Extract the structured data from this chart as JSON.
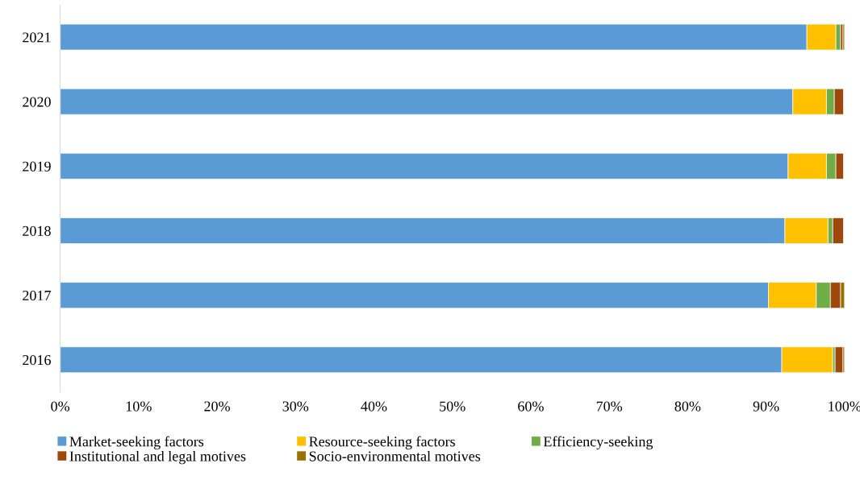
{
  "chart_data": {
    "type": "bar",
    "orientation": "horizontal",
    "stacked": true,
    "categories": [
      "2021",
      "2020",
      "2019",
      "2018",
      "2017",
      "2016"
    ],
    "series": [
      {
        "name": "Market-seeking factors",
        "color": "#5b9bd5",
        "values": [
          95.2,
          93.4,
          92.8,
          92.4,
          90.3,
          92.0
        ]
      },
      {
        "name": "Resource-seeking factors",
        "color": "#ffc000",
        "values": [
          3.7,
          4.3,
          4.9,
          5.5,
          6.1,
          6.5
        ]
      },
      {
        "name": "Efficiency-seeking",
        "color": "#70ad47",
        "values": [
          0.6,
          1.0,
          1.2,
          0.6,
          1.8,
          0.3
        ]
      },
      {
        "name": "Institutional and legal motives",
        "color": "#9e480e",
        "values": [
          0.3,
          1.2,
          1.0,
          1.4,
          1.3,
          1.0
        ]
      },
      {
        "name": "Socio-environmental motives",
        "color": "#997300",
        "values": [
          0.2,
          null,
          null,
          null,
          0.5,
          0.2
        ]
      }
    ],
    "xlim": [
      0,
      100
    ],
    "xticks": [
      {
        "value": 0,
        "label": "0%"
      },
      {
        "value": 10,
        "label": "10%"
      },
      {
        "value": 20,
        "label": "20%"
      },
      {
        "value": 30,
        "label": "30%"
      },
      {
        "value": 40,
        "label": "40%"
      },
      {
        "value": 50,
        "label": "50%"
      },
      {
        "value": 60,
        "label": "60%"
      },
      {
        "value": 70,
        "label": "70%"
      },
      {
        "value": 80,
        "label": "80%"
      },
      {
        "value": 90,
        "label": "90%"
      },
      {
        "value": 100,
        "label": "100%"
      }
    ],
    "grid": false,
    "legend": "bottom"
  }
}
